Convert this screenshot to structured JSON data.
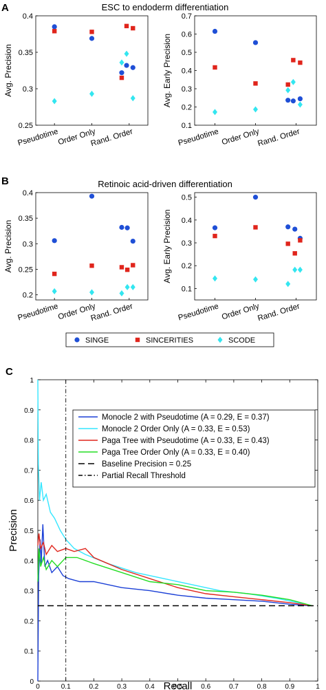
{
  "panels": {
    "A": {
      "letter": "A",
      "title": "ESC to endoderm differentiation"
    },
    "B": {
      "letter": "B",
      "title": "Retinoic acid-driven differentiation"
    },
    "C": {
      "letter": "C"
    }
  },
  "legend_AB": {
    "items": [
      {
        "name": "SINGE",
        "color": "#1f4fd6",
        "marker": "circle"
      },
      {
        "name": "SINCERITIES",
        "color": "#e0251c",
        "marker": "square"
      },
      {
        "name": "SCODE",
        "color": "#33e6f0",
        "marker": "diamond"
      }
    ]
  },
  "colors": {
    "singe": "#1f4fd6",
    "sincerities": "#e0251c",
    "scode": "#33e6f0"
  },
  "chart_data": [
    {
      "id": "A1",
      "type": "scatter",
      "title": "ESC to endoderm differentiation",
      "ylabel": "Avg. Precision",
      "ylim": [
        0.25,
        0.4
      ],
      "yticks": [
        "0.25",
        "0.3",
        "0.35",
        "0.4"
      ],
      "ytick_values": [
        0.25,
        0.3,
        0.35,
        0.4
      ],
      "categories": [
        "Pseudotime",
        "Order Only",
        "Rand. Order"
      ],
      "series": [
        {
          "name": "SINGE",
          "points": [
            [
              1,
              0.385
            ],
            [
              2,
              0.369
            ],
            [
              2.8,
              0.322
            ],
            [
              2.93,
              0.332
            ],
            [
              3.1,
              0.329
            ]
          ]
        },
        {
          "name": "SINCERITIES",
          "points": [
            [
              1,
              0.379
            ],
            [
              2,
              0.378
            ],
            [
              2.8,
              0.315
            ],
            [
              2.93,
              0.386
            ],
            [
              3.1,
              0.383
            ]
          ]
        },
        {
          "name": "SCODE",
          "points": [
            [
              1,
              0.283
            ],
            [
              2,
              0.293
            ],
            [
              2.8,
              0.336
            ],
            [
              2.93,
              0.348
            ],
            [
              3.1,
              0.287
            ]
          ]
        }
      ]
    },
    {
      "id": "A2",
      "type": "scatter",
      "title": "",
      "ylabel": "Avg. Early Precision",
      "ylim": [
        0.1,
        0.7
      ],
      "yticks": [
        "0.1",
        "0.2",
        "0.3",
        "0.4",
        "0.5",
        "0.6",
        "0.7"
      ],
      "ytick_values": [
        0.1,
        0.2,
        0.3,
        0.4,
        0.5,
        0.6,
        0.7
      ],
      "categories": [
        "Pseudotime",
        "Order Only",
        "Rand. Order"
      ],
      "series": [
        {
          "name": "SINGE",
          "points": [
            [
              1,
              0.615
            ],
            [
              2,
              0.553
            ],
            [
              2.8,
              0.237
            ],
            [
              2.93,
              0.233
            ],
            [
              3.1,
              0.245
            ]
          ]
        },
        {
          "name": "SINCERITIES",
          "points": [
            [
              1,
              0.417
            ],
            [
              2,
              0.329
            ],
            [
              2.8,
              0.323
            ],
            [
              2.93,
              0.457
            ],
            [
              3.1,
              0.443
            ]
          ]
        },
        {
          "name": "SCODE",
          "points": [
            [
              1,
              0.172
            ],
            [
              2,
              0.187
            ],
            [
              2.8,
              0.292
            ],
            [
              2.93,
              0.337
            ],
            [
              3.1,
              0.213
            ]
          ]
        }
      ]
    },
    {
      "id": "B1",
      "type": "scatter",
      "title": "Retinoic acid-driven differentiation",
      "ylabel": "Avg. Precision",
      "ylim": [
        0.19,
        0.4
      ],
      "yticks": [
        "0.2",
        "0.25",
        "0.3",
        "0.35",
        "0.4"
      ],
      "ytick_values": [
        0.2,
        0.25,
        0.3,
        0.35,
        0.4
      ],
      "categories": [
        "Pseudotime",
        "Order Only",
        "Rand. Order"
      ],
      "series": [
        {
          "name": "SINGE",
          "points": [
            [
              1,
              0.306
            ],
            [
              2,
              0.393
            ],
            [
              2.8,
              0.332
            ],
            [
              2.95,
              0.331
            ],
            [
              3.1,
              0.305
            ]
          ]
        },
        {
          "name": "SINCERITIES",
          "points": [
            [
              1,
              0.241
            ],
            [
              2,
              0.257
            ],
            [
              2.8,
              0.254
            ],
            [
              2.95,
              0.249
            ],
            [
              3.1,
              0.258
            ]
          ]
        },
        {
          "name": "SCODE",
          "points": [
            [
              1,
              0.207
            ],
            [
              2,
              0.205
            ],
            [
              2.8,
              0.203
            ],
            [
              2.95,
              0.215
            ],
            [
              3.1,
              0.215
            ]
          ]
        }
      ]
    },
    {
      "id": "B2",
      "type": "scatter",
      "title": "",
      "ylabel": "Avg. Early Precision",
      "ylim": [
        0.05,
        0.52
      ],
      "yticks": [
        "0.1",
        "0.2",
        "0.3",
        "0.4",
        "0.5"
      ],
      "ytick_values": [
        0.1,
        0.2,
        0.3,
        0.4,
        0.5
      ],
      "categories": [
        "Pseudotime",
        "Order Only",
        "Rand. Order"
      ],
      "series": [
        {
          "name": "SINGE",
          "points": [
            [
              1,
              0.366
            ],
            [
              2,
              0.5
            ],
            [
              2.8,
              0.37
            ],
            [
              2.97,
              0.36
            ],
            [
              3.1,
              0.32
            ]
          ]
        },
        {
          "name": "SINCERITIES",
          "points": [
            [
              1,
              0.33
            ],
            [
              2,
              0.368
            ],
            [
              2.8,
              0.296
            ],
            [
              2.97,
              0.254
            ],
            [
              3.1,
              0.311
            ]
          ]
        },
        {
          "name": "SCODE",
          "points": [
            [
              1,
              0.144
            ],
            [
              2,
              0.14
            ],
            [
              2.8,
              0.12
            ],
            [
              2.97,
              0.182
            ],
            [
              3.1,
              0.182
            ]
          ]
        }
      ]
    },
    {
      "id": "C",
      "type": "line",
      "xlabel": "Recall",
      "ylabel": "Precision",
      "xlim": [
        0,
        1
      ],
      "ylim": [
        0,
        1
      ],
      "xticks": [
        "0",
        "0.1",
        "0.2",
        "0.3",
        "0.4",
        "0.5",
        "0.6",
        "0.7",
        "0.8",
        "0.9",
        "1"
      ],
      "xtick_values": [
        0,
        0.1,
        0.2,
        0.3,
        0.4,
        0.5,
        0.6,
        0.7,
        0.8,
        0.9,
        1
      ],
      "yticks": [
        "0",
        "0.1",
        "0.2",
        "0.3",
        "0.4",
        "0.5",
        "0.6",
        "0.7",
        "0.8",
        "0.9",
        "1"
      ],
      "ytick_values": [
        0,
        0.1,
        0.2,
        0.3,
        0.4,
        0.5,
        0.6,
        0.7,
        0.8,
        0.9,
        1
      ],
      "legend": "top-right",
      "series": [
        {
          "name": "Monocle 2 with Pseudotime (A = 0.29, E = 0.37)",
          "color": "#1a3fd6",
          "dash": "solid",
          "points": [
            [
              0,
              0.0
            ],
            [
              0.003,
              0.35
            ],
            [
              0.008,
              0.47
            ],
            [
              0.012,
              0.39
            ],
            [
              0.018,
              0.52
            ],
            [
              0.025,
              0.38
            ],
            [
              0.035,
              0.4
            ],
            [
              0.05,
              0.36
            ],
            [
              0.07,
              0.38
            ],
            [
              0.09,
              0.35
            ],
            [
              0.11,
              0.34
            ],
            [
              0.15,
              0.33
            ],
            [
              0.2,
              0.33
            ],
            [
              0.3,
              0.31
            ],
            [
              0.4,
              0.3
            ],
            [
              0.5,
              0.285
            ],
            [
              0.6,
              0.275
            ],
            [
              0.7,
              0.27
            ],
            [
              0.8,
              0.265
            ],
            [
              0.9,
              0.255
            ],
            [
              0.97,
              0.25
            ]
          ]
        },
        {
          "name": "Monocle 2 Order Only (A = 0.33, E = 0.53)",
          "color": "#33e6ff",
          "dash": "solid",
          "points": [
            [
              0,
              1.0
            ],
            [
              0.002,
              0.72
            ],
            [
              0.006,
              0.6
            ],
            [
              0.012,
              0.66
            ],
            [
              0.02,
              0.6
            ],
            [
              0.03,
              0.62
            ],
            [
              0.045,
              0.56
            ],
            [
              0.06,
              0.54
            ],
            [
              0.08,
              0.5
            ],
            [
              0.1,
              0.47
            ],
            [
              0.13,
              0.44
            ],
            [
              0.17,
              0.42
            ],
            [
              0.25,
              0.39
            ],
            [
              0.35,
              0.36
            ],
            [
              0.45,
              0.34
            ],
            [
              0.55,
              0.32
            ],
            [
              0.65,
              0.3
            ],
            [
              0.75,
              0.29
            ],
            [
              0.85,
              0.275
            ],
            [
              0.93,
              0.26
            ],
            [
              0.98,
              0.25
            ]
          ]
        },
        {
          "name": "Paga Tree with Pseudotime (A = 0.33, E = 0.43)",
          "color": "#e0251c",
          "dash": "solid",
          "points": [
            [
              0,
              0.45
            ],
            [
              0.004,
              0.49
            ],
            [
              0.01,
              0.44
            ],
            [
              0.02,
              0.46
            ],
            [
              0.03,
              0.42
            ],
            [
              0.05,
              0.45
            ],
            [
              0.07,
              0.43
            ],
            [
              0.1,
              0.44
            ],
            [
              0.13,
              0.43
            ],
            [
              0.17,
              0.44
            ],
            [
              0.2,
              0.41
            ],
            [
              0.25,
              0.39
            ],
            [
              0.3,
              0.37
            ],
            [
              0.4,
              0.34
            ],
            [
              0.5,
              0.31
            ],
            [
              0.6,
              0.29
            ],
            [
              0.7,
              0.28
            ],
            [
              0.8,
              0.27
            ],
            [
              0.9,
              0.26
            ],
            [
              0.98,
              0.25
            ]
          ]
        },
        {
          "name": "Paga Tree Order Only (A = 0.33, E = 0.40)",
          "color": "#22dd22",
          "dash": "solid",
          "points": [
            [
              0,
              0.33
            ],
            [
              0.004,
              0.44
            ],
            [
              0.01,
              0.38
            ],
            [
              0.02,
              0.41
            ],
            [
              0.03,
              0.37
            ],
            [
              0.05,
              0.4
            ],
            [
              0.07,
              0.38
            ],
            [
              0.1,
              0.41
            ],
            [
              0.14,
              0.41
            ],
            [
              0.2,
              0.39
            ],
            [
              0.3,
              0.36
            ],
            [
              0.4,
              0.33
            ],
            [
              0.5,
              0.32
            ],
            [
              0.6,
              0.3
            ],
            [
              0.7,
              0.295
            ],
            [
              0.8,
              0.285
            ],
            [
              0.9,
              0.27
            ],
            [
              0.98,
              0.25
            ]
          ]
        },
        {
          "name": "Baseline Precision = 0.25",
          "color": "#000000",
          "dash": "dashed",
          "points": [
            [
              0,
              0.25
            ],
            [
              1,
              0.25
            ]
          ]
        },
        {
          "name": "Partial Recall Threshold",
          "color": "#000000",
          "dash": "dashdot",
          "points": [
            [
              0.1,
              0
            ],
            [
              0.1,
              1
            ]
          ]
        }
      ]
    }
  ]
}
